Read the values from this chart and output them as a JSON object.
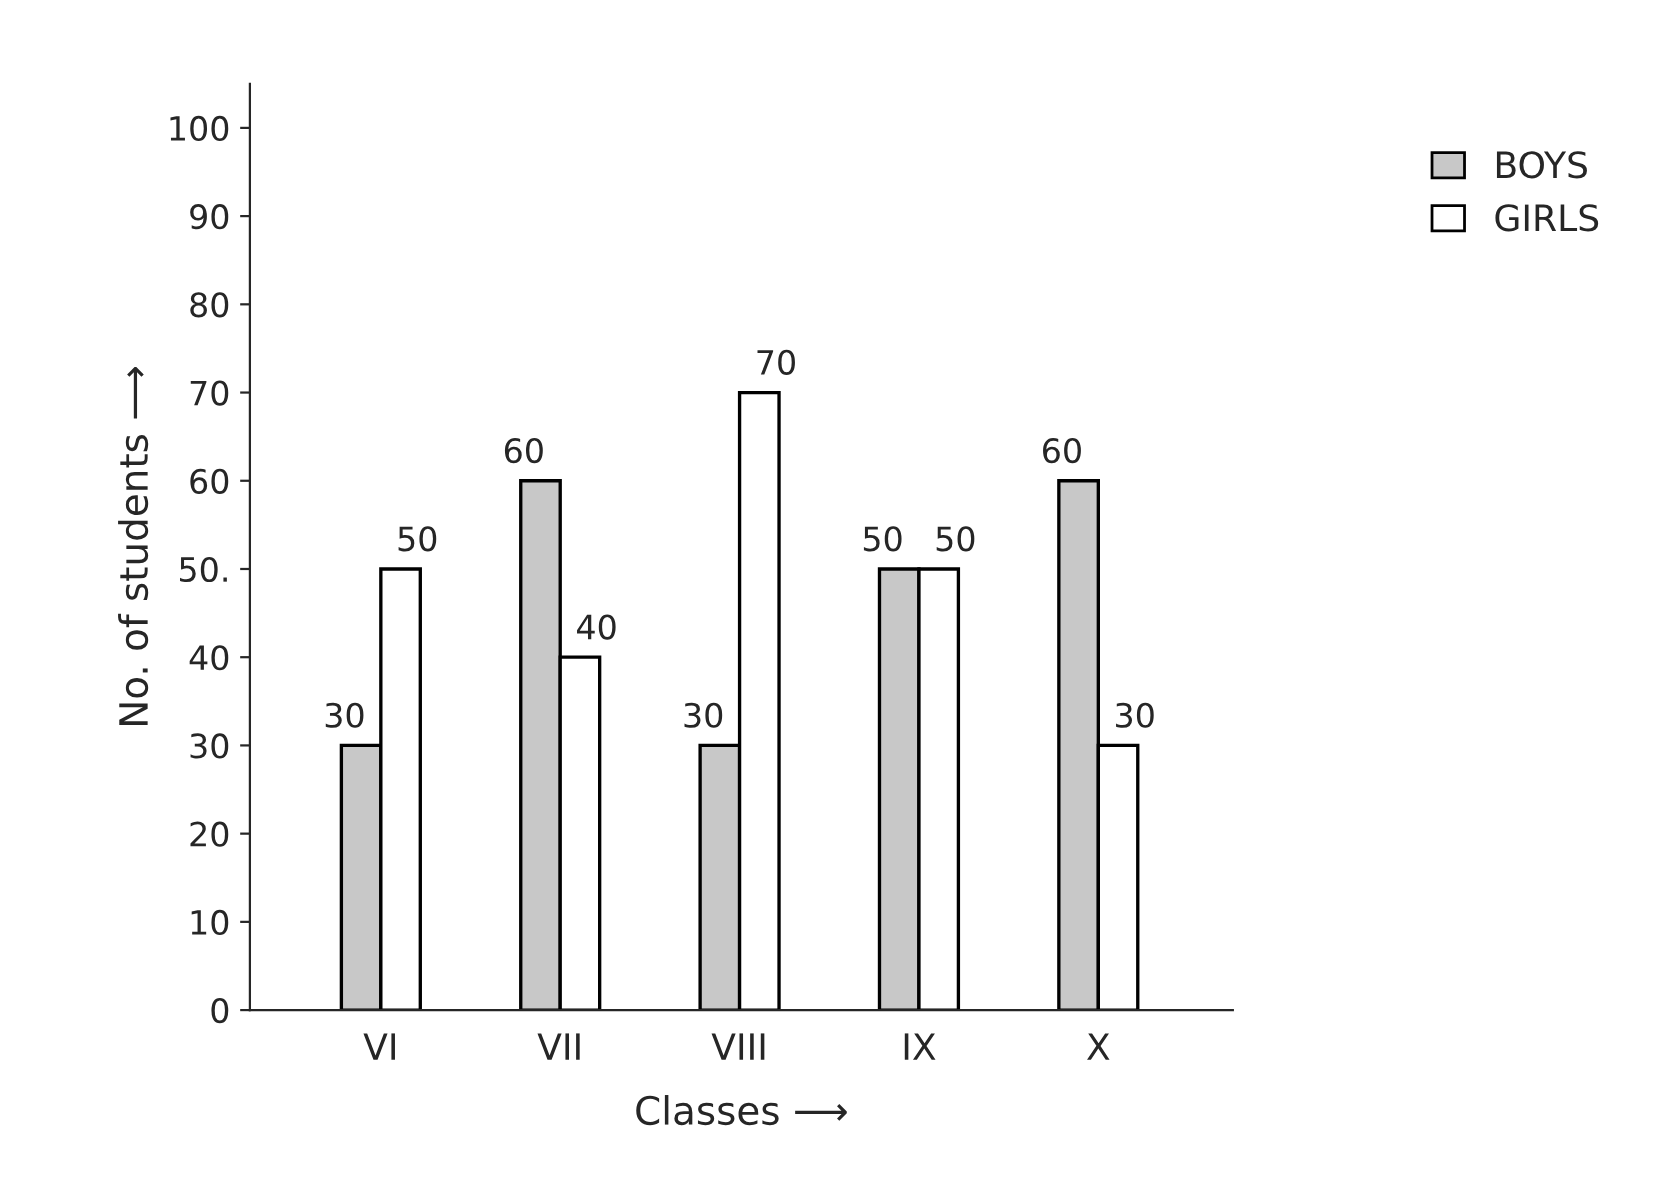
{
  "chart_data": {
    "type": "bar",
    "xlabel": "Classes ⟶",
    "ylabel": "No. of students ⟶",
    "categories": [
      "VI",
      "VII",
      "VIII",
      "IX",
      "X"
    ],
    "series": [
      {
        "name": "BOYS",
        "color": "#c8c8c8",
        "values": [
          30,
          60,
          30,
          50,
          60
        ]
      },
      {
        "name": "GIRLS",
        "color": "#ffffff",
        "values": [
          50,
          40,
          70,
          50,
          30
        ]
      }
    ],
    "ylim": [
      0,
      105
    ],
    "yticks": [
      0,
      10,
      20,
      30,
      40,
      {
        "value": 50,
        "label": "50."
      },
      60,
      70,
      80,
      90,
      100
    ],
    "data_labels": true,
    "legend": "top right",
    "grid": false
  }
}
